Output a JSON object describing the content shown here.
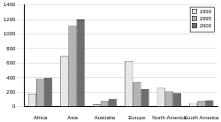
{
  "chart_data": {
    "type": "bar",
    "categories": [
      "Africa",
      "Asia",
      "Australia",
      "Europe",
      "North America",
      "South America"
    ],
    "series": [
      {
        "name": "1990",
        "color": "#e6e6e6",
        "values": [
          180,
          700,
          30,
          630,
          260,
          50
        ]
      },
      {
        "name": "1995",
        "color": "#b3b3b3",
        "values": [
          390,
          1120,
          80,
          340,
          210,
          80
        ]
      },
      {
        "name": "2000",
        "color": "#6e6e6e",
        "values": [
          400,
          1200,
          110,
          240,
          190,
          90
        ]
      }
    ],
    "ylim": [
      0,
      1400
    ],
    "yticks": [
      0,
      200,
      400,
      600,
      800,
      1000,
      1200,
      1400
    ],
    "grid": true,
    "legend": "top-right"
  }
}
